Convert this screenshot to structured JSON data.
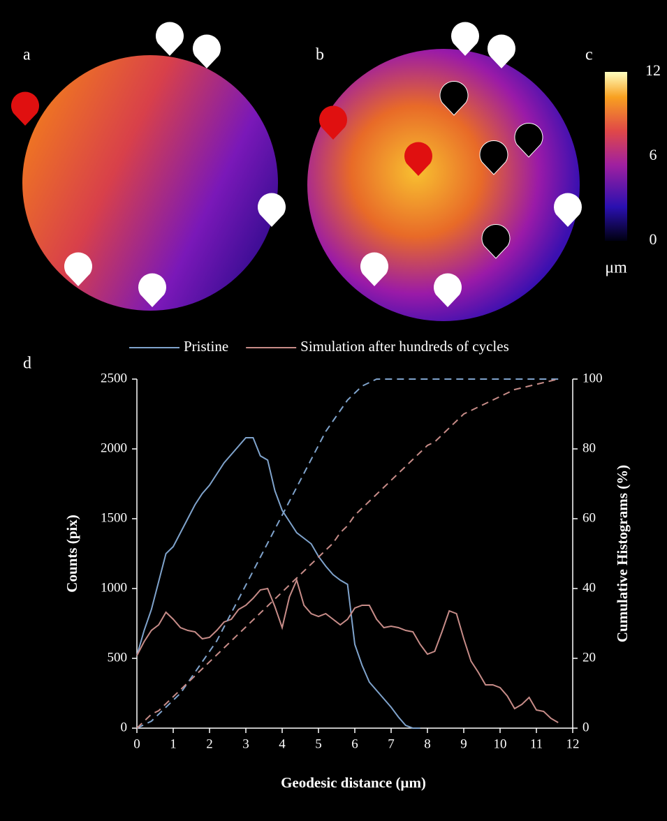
{
  "panels": {
    "labels": [
      "a",
      "b",
      "c",
      "d"
    ]
  },
  "colorbar": {
    "lim": [
      0,
      12
    ],
    "ticks": [
      0,
      6,
      12
    ],
    "unit": "μm"
  },
  "chart_data": {
    "type": "line",
    "xlabel": "Geodesic distance (μm)",
    "ylabel": "Counts (pix)",
    "y2label": "Cumulative Histograms (%)",
    "x": [
      0,
      0.2,
      0.4,
      0.6,
      0.8,
      1,
      1.2,
      1.4,
      1.6,
      1.8,
      2,
      2.2,
      2.4,
      2.6,
      2.8,
      3,
      3.2,
      3.4,
      3.6,
      3.8,
      4,
      4.2,
      4.4,
      4.6,
      4.8,
      5,
      5.2,
      5.4,
      5.6,
      5.8,
      6,
      6.2,
      6.4,
      6.6,
      6.8,
      7,
      7.2,
      7.4,
      7.6,
      7.8,
      8,
      8.2,
      8.4,
      8.6,
      8.8,
      9,
      9.2,
      9.4,
      9.6,
      9.8,
      10,
      10.2,
      10.4,
      10.6,
      10.8,
      11,
      11.2,
      11.4,
      11.6
    ],
    "series": [
      {
        "name": "Pristine",
        "color": "#7fa3cc",
        "values": [
          520,
          700,
          850,
          1050,
          1250,
          1300,
          1400,
          1500,
          1600,
          1680,
          1740,
          1820,
          1900,
          1960,
          2020,
          2080,
          2080,
          1950,
          1920,
          1700,
          1560,
          1480,
          1400,
          1360,
          1320,
          1230,
          1160,
          1100,
          1060,
          1030,
          600,
          450,
          330,
          270,
          210,
          150,
          80,
          20,
          0,
          0,
          null,
          null,
          null,
          null,
          null,
          null,
          null,
          null,
          null,
          null,
          null,
          null,
          null,
          null,
          null,
          null,
          null,
          null,
          null
        ]
      },
      {
        "name": "Simulation after hundreds of cycles",
        "color": "#c78c88",
        "values": [
          520,
          620,
          700,
          740,
          830,
          780,
          720,
          700,
          690,
          640,
          650,
          700,
          760,
          780,
          850,
          880,
          930,
          990,
          1000,
          870,
          720,
          940,
          1060,
          880,
          820,
          800,
          820,
          780,
          740,
          780,
          860,
          880,
          880,
          780,
          720,
          730,
          720,
          700,
          690,
          600,
          530,
          550,
          690,
          840,
          820,
          640,
          480,
          400,
          310,
          310,
          290,
          230,
          140,
          170,
          220,
          130,
          120,
          70,
          40
        ]
      },
      {
        "color": "#7fa3cc",
        "axis": "y2",
        "dash": true,
        "values": [
          0,
          1,
          2,
          4,
          6,
          8,
          10,
          13,
          16,
          19,
          22,
          25,
          29,
          33,
          37,
          41,
          45,
          49,
          53,
          57,
          61,
          65,
          69,
          73,
          77,
          81,
          85,
          88,
          91,
          94,
          96,
          98,
          99,
          100,
          100,
          100,
          100,
          100,
          100,
          100,
          100,
          100,
          100,
          100,
          100,
          100,
          100,
          100,
          100,
          100,
          100,
          100,
          100,
          100,
          100,
          100,
          100,
          100,
          100
        ]
      },
      {
        "color": "#c78c88",
        "axis": "y2",
        "dash": true,
        "values": [
          0,
          2,
          4,
          5,
          7,
          9,
          11,
          13,
          15,
          17,
          19,
          21,
          23,
          25,
          27,
          29,
          31,
          33,
          35,
          37,
          39,
          41,
          43,
          45,
          47,
          49,
          51,
          53,
          56,
          58,
          61,
          63,
          65,
          67,
          69,
          71,
          73,
          75,
          77,
          79,
          81,
          82,
          84,
          86,
          88,
          90,
          91,
          92,
          93,
          94,
          95,
          96,
          97,
          97.5,
          98,
          98.5,
          99,
          99.5,
          100
        ]
      }
    ],
    "xlim": [
      0,
      12
    ],
    "xticks": [
      0,
      1,
      2,
      3,
      4,
      5,
      6,
      7,
      8,
      9,
      10,
      11,
      12
    ],
    "ylim": [
      0,
      2500
    ],
    "yticks": [
      0,
      500,
      1000,
      1500,
      2000,
      2500
    ],
    "y2lim": [
      0,
      100
    ],
    "y2ticks": [
      0,
      20,
      40,
      60,
      80,
      100
    ]
  }
}
